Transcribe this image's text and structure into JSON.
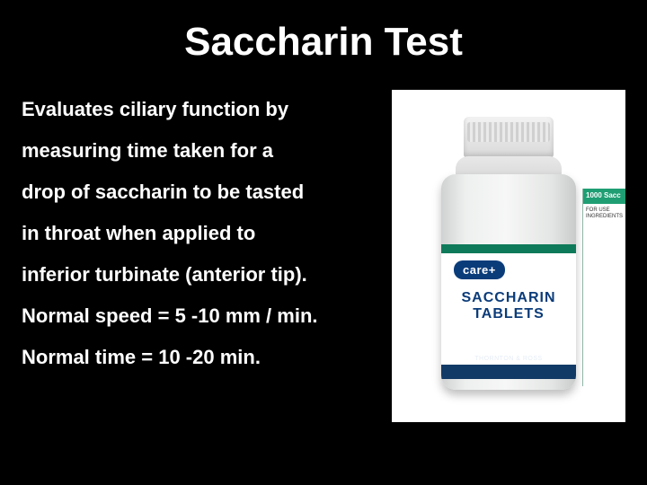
{
  "background_color": "#000000",
  "text_color": "#ffffff",
  "title": "Saccharin Test",
  "title_fontsize": 44,
  "body_fontsize": 22,
  "lines": [
    "Evaluates ciliary function by",
    "measuring time taken for a",
    "drop of saccharin to be tasted",
    "in throat when applied to",
    "inferior turbinate (anterior tip).",
    "Normal speed = 5 -10 mm / min.",
    "Normal time = 10 -20 min."
  ],
  "bottle": {
    "brand_badge": "care+",
    "label_line1": "SACCHARIN",
    "label_line2": "TABLETS",
    "manufacturer": "THORNTON & ROSS",
    "side_header": "1000 Sacc",
    "side_text": "FOR USE INGREDIENTS",
    "colors": {
      "cap": "#e6e6e6",
      "body": "#eef0ef",
      "band_top": "#0f7a5a",
      "band_bottom": "#123a66",
      "badge_bg": "#0b3c7a",
      "label_text": "#0b3c7a",
      "side_green": "#1f9e73",
      "image_bg": "#ffffff"
    }
  }
}
